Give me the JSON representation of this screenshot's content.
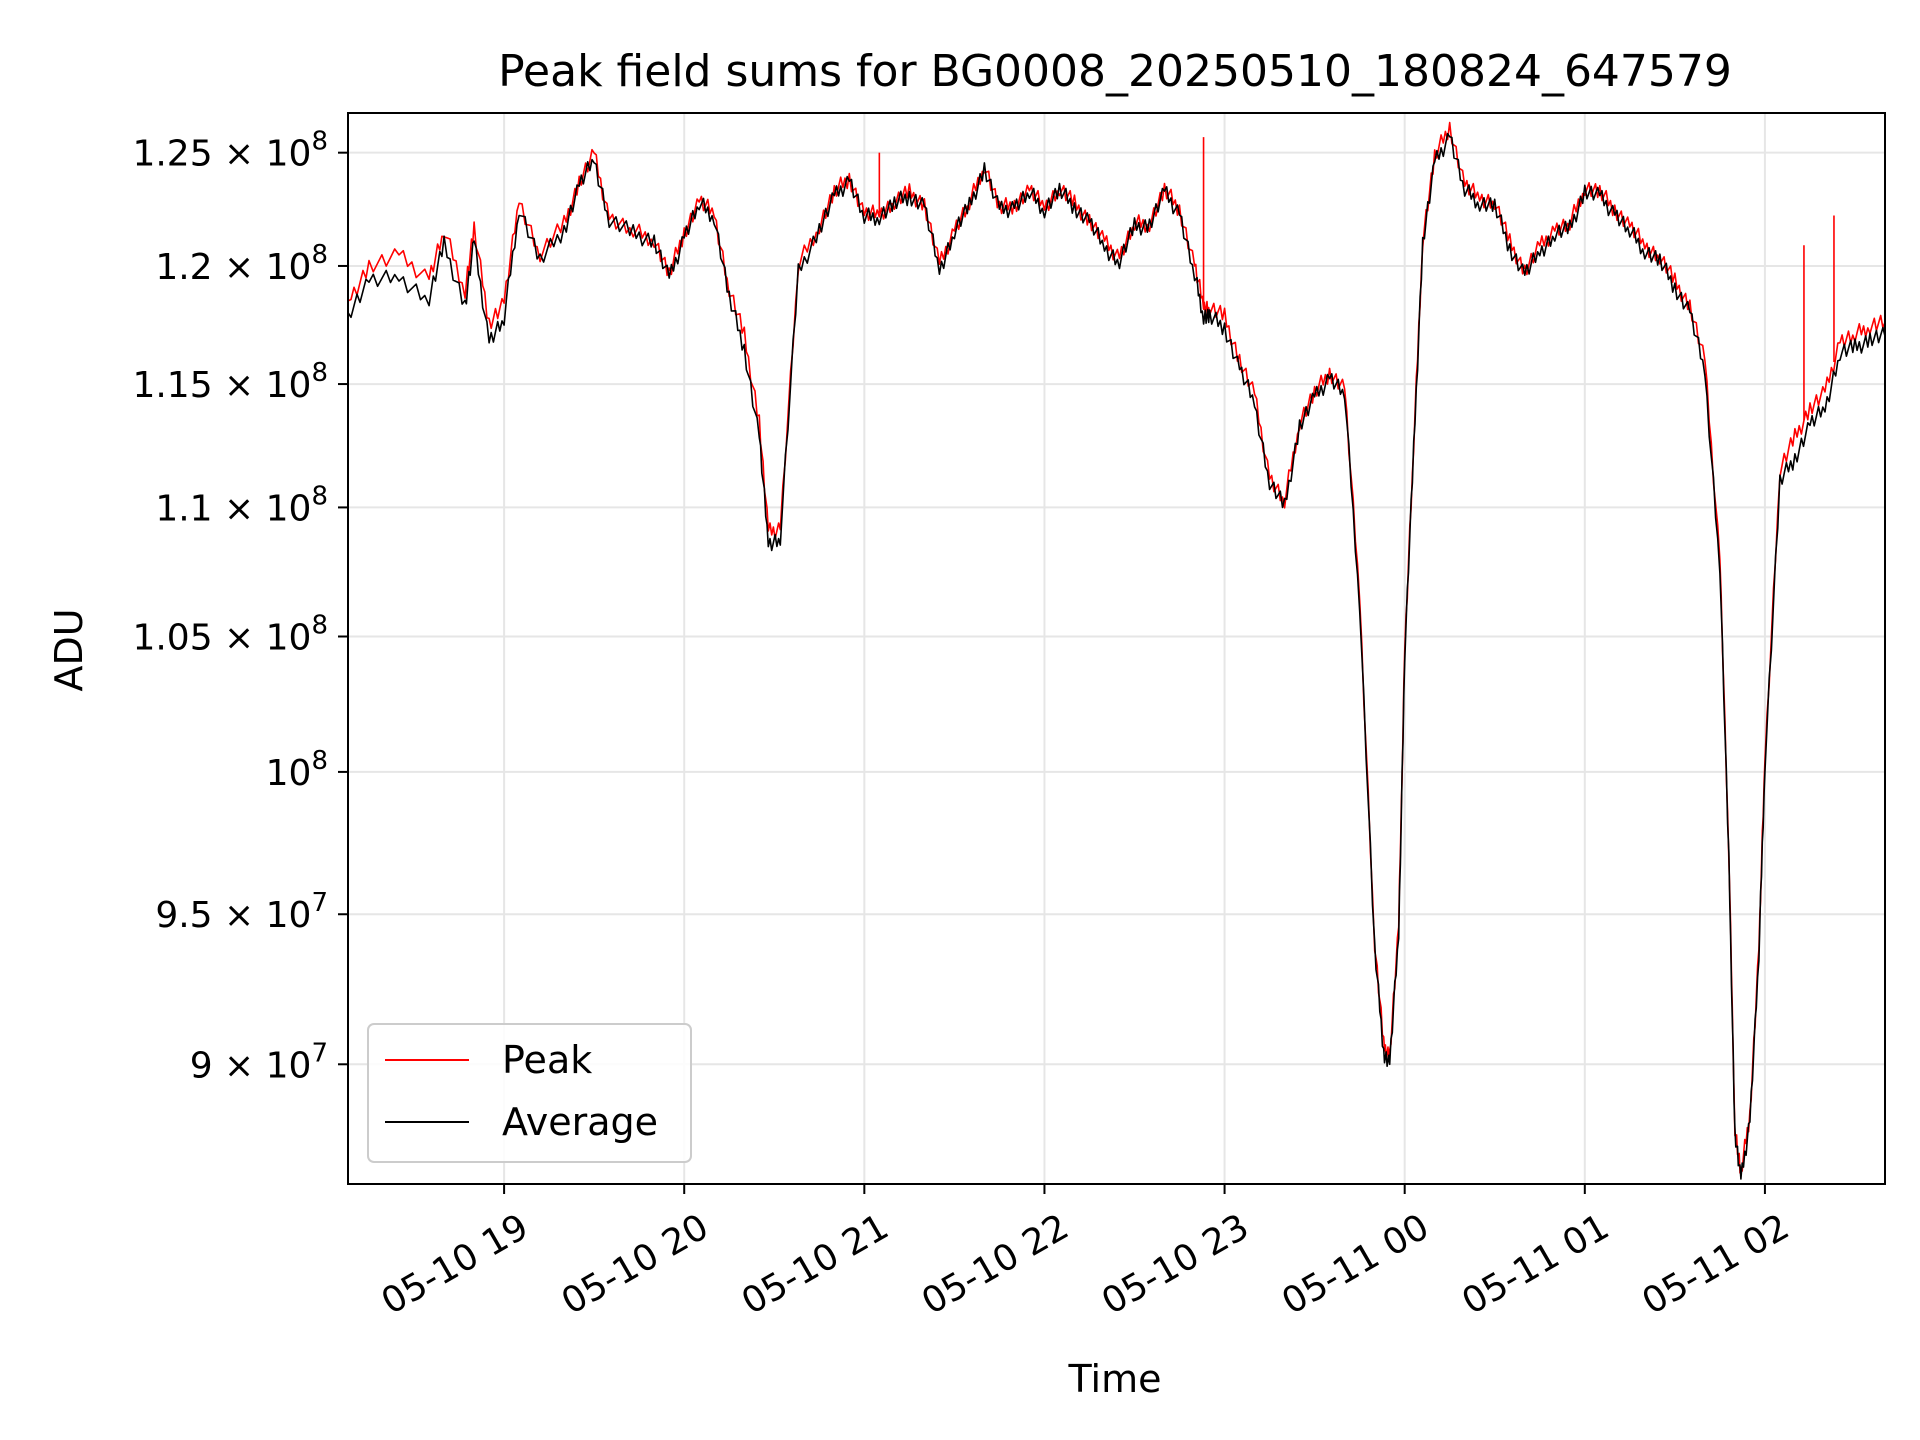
{
  "chart_data": {
    "type": "line",
    "title": "Peak field sums for BG0008_20250510_180824_647579",
    "xlabel": "Time",
    "ylabel": "ADU",
    "yscale": "log",
    "grid": true,
    "legend_position": "lower-left",
    "xlim": [
      "2025-05-10 18:08",
      "2025-05-11 02:40"
    ],
    "ylim": [
      86200000,
      126800000
    ],
    "x_ticks": [
      {
        "value": "2025-05-10 19:00",
        "label": "05-10 19"
      },
      {
        "value": "2025-05-10 20:00",
        "label": "05-10 20"
      },
      {
        "value": "2025-05-10 21:00",
        "label": "05-10 21"
      },
      {
        "value": "2025-05-10 22:00",
        "label": "05-10 22"
      },
      {
        "value": "2025-05-10 23:00",
        "label": "05-10 23"
      },
      {
        "value": "2025-05-11 00:00",
        "label": "05-11 00"
      },
      {
        "value": "2025-05-11 01:00",
        "label": "05-11 01"
      },
      {
        "value": "2025-05-11 02:00",
        "label": "05-11 02"
      }
    ],
    "y_ticks": [
      {
        "value": 90000000,
        "mantissa": "9",
        "exp": "7"
      },
      {
        "value": 95000000,
        "mantissa": "9.5",
        "exp": "7"
      },
      {
        "value": 100000000,
        "mantissa": "",
        "exp": "8"
      },
      {
        "value": 105000000,
        "mantissa": "1.05",
        "exp": "8"
      },
      {
        "value": 110000000,
        "mantissa": "1.1",
        "exp": "8"
      },
      {
        "value": 115000000,
        "mantissa": "1.15",
        "exp": "8"
      },
      {
        "value": 120000000,
        "mantissa": "1.2",
        "exp": "8"
      },
      {
        "value": 125000000,
        "mantissa": "1.25",
        "exp": "8"
      }
    ],
    "series": [
      {
        "name": "Peak",
        "color": "#ff0000",
        "x": [
          "2025-05-10 18:08",
          "2025-05-10 18:15",
          "2025-05-10 18:25",
          "2025-05-10 18:35",
          "2025-05-10 18:40",
          "2025-05-10 18:47",
          "2025-05-10 18:50",
          "2025-05-10 18:55",
          "2025-05-10 19:00",
          "2025-05-10 19:05",
          "2025-05-10 19:12",
          "2025-05-10 19:20",
          "2025-05-10 19:25",
          "2025-05-10 19:30",
          "2025-05-10 19:35",
          "2025-05-10 19:43",
          "2025-05-10 19:50",
          "2025-05-10 19:55",
          "2025-05-10 20:00",
          "2025-05-10 20:05",
          "2025-05-10 20:10",
          "2025-05-10 20:15",
          "2025-05-10 20:20",
          "2025-05-10 20:25",
          "2025-05-10 20:28",
          "2025-05-10 20:32",
          "2025-05-10 20:38",
          "2025-05-10 20:45",
          "2025-05-10 20:50",
          "2025-05-10 20:55",
          "2025-05-10 21:00",
          "2025-05-10 21:05",
          "2025-05-10 21:10",
          "2025-05-10 21:15",
          "2025-05-10 21:20",
          "2025-05-10 21:25",
          "2025-05-10 21:30",
          "2025-05-10 21:35",
          "2025-05-10 21:40",
          "2025-05-10 21:45",
          "2025-05-10 21:50",
          "2025-05-10 21:55",
          "2025-05-10 22:00",
          "2025-05-10 22:05",
          "2025-05-10 22:10",
          "2025-05-10 22:15",
          "2025-05-10 22:20",
          "2025-05-10 22:25",
          "2025-05-10 22:30",
          "2025-05-10 22:35",
          "2025-05-10 22:40",
          "2025-05-10 22:45",
          "2025-05-10 22:50",
          "2025-05-10 22:53",
          "2025-05-10 22:55",
          "2025-05-10 23:00",
          "2025-05-10 23:05",
          "2025-05-10 23:10",
          "2025-05-10 23:15",
          "2025-05-10 23:20",
          "2025-05-10 23:25",
          "2025-05-10 23:30",
          "2025-05-10 23:35",
          "2025-05-10 23:40",
          "2025-05-10 23:45",
          "2025-05-10 23:50",
          "2025-05-10 23:53",
          "2025-05-10 23:55",
          "2025-05-10 23:58",
          "2025-05-11 00:00",
          "2025-05-11 00:03",
          "2025-05-11 00:06",
          "2025-05-11 00:10",
          "2025-05-11 00:15",
          "2025-05-11 00:20",
          "2025-05-11 00:25",
          "2025-05-11 00:30",
          "2025-05-11 00:35",
          "2025-05-11 00:40",
          "2025-05-11 00:45",
          "2025-05-11 00:50",
          "2025-05-11 00:55",
          "2025-05-11 01:00",
          "2025-05-11 01:05",
          "2025-05-11 01:10",
          "2025-05-11 01:15",
          "2025-05-11 01:20",
          "2025-05-11 01:25",
          "2025-05-11 01:30",
          "2025-05-11 01:35",
          "2025-05-11 01:40",
          "2025-05-11 01:45",
          "2025-05-11 01:48",
          "2025-05-11 01:50",
          "2025-05-11 01:52",
          "2025-05-11 01:55",
          "2025-05-11 01:58",
          "2025-05-11 02:00",
          "2025-05-11 02:05",
          "2025-05-11 02:10",
          "2025-05-11 02:15",
          "2025-05-11 02:20",
          "2025-05-11 02:25",
          "2025-05-11 02:30",
          "2025-05-11 02:35",
          "2025-05-11 02:40"
        ],
        "values": [
          118500000,
          120000000,
          120400000,
          119500000,
          121500000,
          119000000,
          121600000,
          117600000,
          118400000,
          122900000,
          120500000,
          121800000,
          123700000,
          124900000,
          122100000,
          121500000,
          121200000,
          119600000,
          121500000,
          122800000,
          122300000,
          119000000,
          117000000,
          113500000,
          109000000,
          109200000,
          120000000,
          121800000,
          123200000,
          123900000,
          122200000,
          122300000,
          122800000,
          123200000,
          122700000,
          120000000,
          121600000,
          122700000,
          124500000,
          122500000,
          122700000,
          123300000,
          122600000,
          123400000,
          122700000,
          122000000,
          121000000,
          120400000,
          121800000,
          121900000,
          123300000,
          122500000,
          120000000,
          118300000,
          118200000,
          117800000,
          116000000,
          114500000,
          111200000,
          110200000,
          113500000,
          114600000,
          115500000,
          114800000,
          106500000,
          94000000,
          90600000,
          90300000,
          94500000,
          104500000,
          112500000,
          121200000,
          124800000,
          126200000,
          123500000,
          123000000,
          122800000,
          121000000,
          119800000,
          120800000,
          121600000,
          121800000,
          123500000,
          123200000,
          122500000,
          121700000,
          120900000,
          120400000,
          119300000,
          118300000,
          115900000,
          108000000,
          97000000,
          88000000,
          86500000,
          88400000,
          93800000,
          100500000,
          111500000,
          112800000,
          114000000,
          114600000,
          116800000,
          117000000,
          117500000,
          117600000
        ]
      },
      {
        "name": "Average",
        "color": "#000000",
        "x": [
          "2025-05-10 18:08",
          "2025-05-10 18:15",
          "2025-05-10 18:25",
          "2025-05-10 18:35",
          "2025-05-10 18:40",
          "2025-05-10 18:47",
          "2025-05-10 18:50",
          "2025-05-10 18:55",
          "2025-05-10 19:00",
          "2025-05-10 19:05",
          "2025-05-10 19:12",
          "2025-05-10 19:20",
          "2025-05-10 19:25",
          "2025-05-10 19:30",
          "2025-05-10 19:35",
          "2025-05-10 19:43",
          "2025-05-10 19:50",
          "2025-05-10 19:55",
          "2025-05-10 20:00",
          "2025-05-10 20:05",
          "2025-05-10 20:10",
          "2025-05-10 20:15",
          "2025-05-10 20:20",
          "2025-05-10 20:25",
          "2025-05-10 20:28",
          "2025-05-10 20:32",
          "2025-05-10 20:38",
          "2025-05-10 20:45",
          "2025-05-10 20:50",
          "2025-05-10 20:55",
          "2025-05-10 21:00",
          "2025-05-10 21:05",
          "2025-05-10 21:10",
          "2025-05-10 21:15",
          "2025-05-10 21:20",
          "2025-05-10 21:25",
          "2025-05-10 21:30",
          "2025-05-10 21:35",
          "2025-05-10 21:40",
          "2025-05-10 21:45",
          "2025-05-10 21:50",
          "2025-05-10 21:55",
          "2025-05-10 22:00",
          "2025-05-10 22:05",
          "2025-05-10 22:10",
          "2025-05-10 22:15",
          "2025-05-10 22:20",
          "2025-05-10 22:25",
          "2025-05-10 22:30",
          "2025-05-10 22:35",
          "2025-05-10 22:40",
          "2025-05-10 22:45",
          "2025-05-10 22:50",
          "2025-05-10 22:53",
          "2025-05-10 22:55",
          "2025-05-10 23:00",
          "2025-05-10 23:05",
          "2025-05-10 23:10",
          "2025-05-10 23:15",
          "2025-05-10 23:20",
          "2025-05-10 23:25",
          "2025-05-10 23:30",
          "2025-05-10 23:35",
          "2025-05-10 23:40",
          "2025-05-10 23:45",
          "2025-05-10 23:50",
          "2025-05-10 23:53",
          "2025-05-10 23:55",
          "2025-05-10 23:58",
          "2025-05-11 00:00",
          "2025-05-11 00:03",
          "2025-05-11 00:06",
          "2025-05-11 00:10",
          "2025-05-11 00:15",
          "2025-05-11 00:20",
          "2025-05-11 00:25",
          "2025-05-11 00:30",
          "2025-05-11 00:35",
          "2025-05-11 00:40",
          "2025-05-11 00:45",
          "2025-05-11 00:50",
          "2025-05-11 00:55",
          "2025-05-11 01:00",
          "2025-05-11 01:05",
          "2025-05-11 01:10",
          "2025-05-11 01:15",
          "2025-05-11 01:20",
          "2025-05-11 01:25",
          "2025-05-11 01:30",
          "2025-05-11 01:35",
          "2025-05-11 01:40",
          "2025-05-11 01:45",
          "2025-05-11 01:48",
          "2025-05-11 01:50",
          "2025-05-11 01:52",
          "2025-05-11 01:55",
          "2025-05-11 01:58",
          "2025-05-11 02:00",
          "2025-05-11 02:05",
          "2025-05-11 02:10",
          "2025-05-11 02:15",
          "2025-05-11 02:20",
          "2025-05-11 02:25",
          "2025-05-11 02:30",
          "2025-05-11 02:35",
          "2025-05-11 02:40"
        ],
        "values": [
          118000000,
          119300000,
          119500000,
          118600000,
          120900000,
          118300000,
          121000000,
          116800000,
          117700000,
          122600000,
          120200000,
          121600000,
          123500000,
          124700000,
          122000000,
          121400000,
          121100000,
          119400000,
          121300000,
          122700000,
          122200000,
          118600000,
          116500000,
          112800000,
          108600000,
          108800000,
          119700000,
          121600000,
          123000000,
          123800000,
          122100000,
          122200000,
          122700000,
          123100000,
          122600000,
          119800000,
          121500000,
          122600000,
          124300000,
          122400000,
          122600000,
          123200000,
          122500000,
          123300000,
          122600000,
          121900000,
          120800000,
          120200000,
          121700000,
          121800000,
          123200000,
          122300000,
          119600000,
          117900000,
          117800000,
          117400000,
          115600000,
          114200000,
          111000000,
          110000000,
          113300000,
          114400000,
          115300000,
          114600000,
          106300000,
          93800000,
          90400000,
          90000000,
          94300000,
          104300000,
          112300000,
          121000000,
          124500000,
          125800000,
          123300000,
          122800000,
          122600000,
          120800000,
          119600000,
          120600000,
          121400000,
          121600000,
          123300000,
          123000000,
          122300000,
          121500000,
          120700000,
          120200000,
          119100000,
          118000000,
          115500000,
          107700000,
          96800000,
          87800000,
          86300000,
          88200000,
          93600000,
          100300000,
          111000000,
          112000000,
          113300000,
          114000000,
          116300000,
          116500000,
          116900000,
          117000000
        ]
      }
    ],
    "spikes": [
      {
        "series": "Peak",
        "x": "2025-05-10 21:05",
        "value": 125000000
      },
      {
        "series": "Peak",
        "x": "2025-05-10 22:53",
        "value": 125700000
      },
      {
        "series": "Peak",
        "x": "2025-05-11 02:13",
        "value": 120900000
      },
      {
        "series": "Peak",
        "x": "2025-05-11 02:23",
        "value": 122200000
      }
    ]
  }
}
